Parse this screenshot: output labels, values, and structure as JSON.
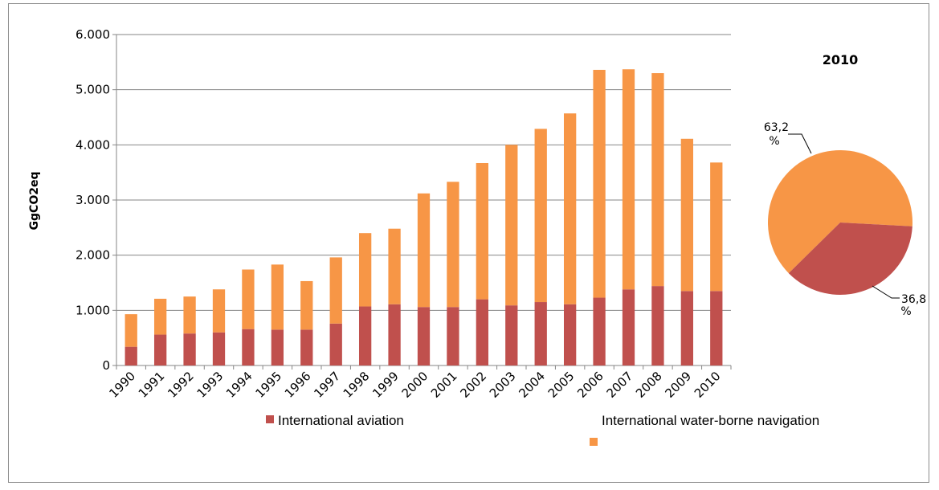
{
  "chart_data": [
    {
      "type": "bar",
      "stacked": true,
      "ylabel": "GgCO2eq",
      "ylim": [
        0,
        6000
      ],
      "ytick_labels": [
        "0",
        "1.000",
        "2.000",
        "3.000",
        "4.000",
        "5.000",
        "6.000"
      ],
      "grid": true,
      "legend_position": "bottom",
      "categories": [
        "1990",
        "1991",
        "1992",
        "1993",
        "1994",
        "1995",
        "1996",
        "1997",
        "1998",
        "1999",
        "2000",
        "2001",
        "2002",
        "2003",
        "2004",
        "2005",
        "2006",
        "2007",
        "2008",
        "2009",
        "2010"
      ],
      "series": [
        {
          "name": "International aviation",
          "color": "#c0504d",
          "values": [
            340,
            560,
            580,
            600,
            660,
            650,
            650,
            760,
            1070,
            1110,
            1060,
            1060,
            1200,
            1090,
            1150,
            1110,
            1230,
            1380,
            1440,
            1350,
            1350
          ]
        },
        {
          "name": "International water-borne navigation",
          "color": "#f79646",
          "values": [
            590,
            650,
            670,
            780,
            1080,
            1180,
            880,
            1200,
            1330,
            1370,
            2060,
            2270,
            2470,
            2910,
            3140,
            3460,
            4130,
            3990,
            3860,
            2760,
            2330
          ]
        }
      ]
    },
    {
      "type": "pie",
      "title": "2010",
      "slices": [
        {
          "name": "International water-borne navigation",
          "value": 63.2,
          "label_value": "63,2",
          "label_unit": "%",
          "color": "#f79646"
        },
        {
          "name": "International aviation",
          "value": 36.8,
          "label_value": "36,8",
          "label_unit": "%",
          "color": "#c0504d"
        }
      ]
    }
  ]
}
